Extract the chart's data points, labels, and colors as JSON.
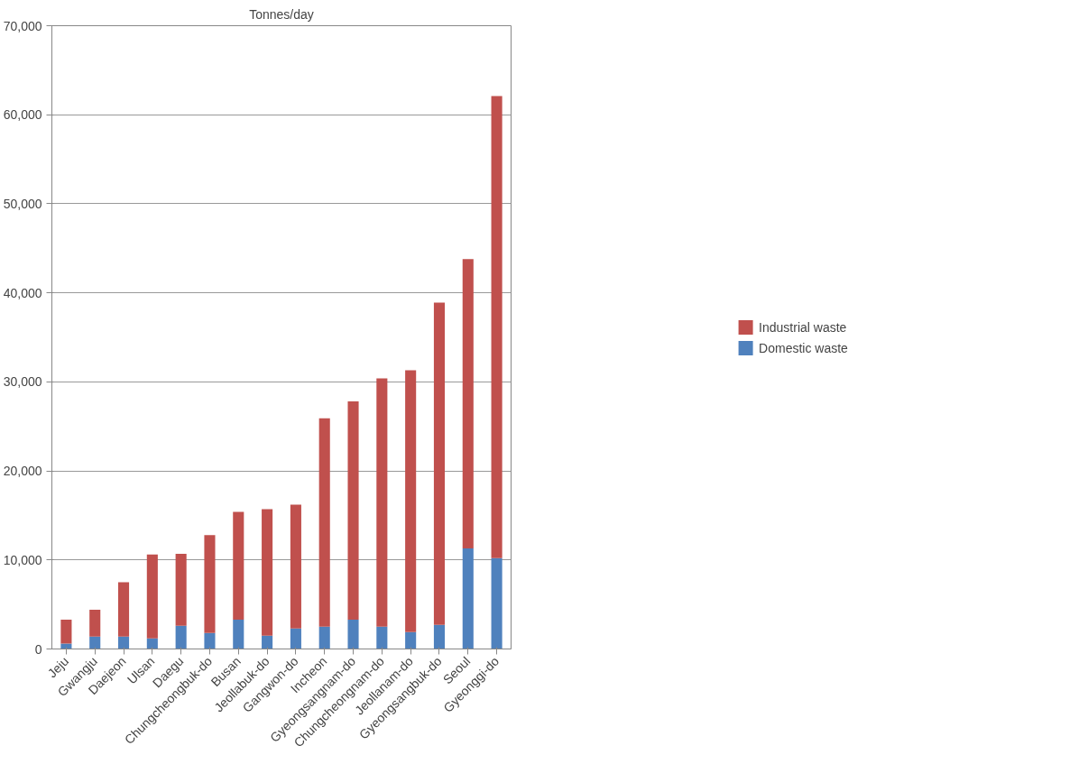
{
  "chart_data": {
    "type": "bar",
    "title": "Tonnes/day",
    "stacked": true,
    "categories": [
      "Jeju",
      "Gwangju",
      "Daejeon",
      "Ulsan",
      "Daegu",
      "Chungcheongbuk-do",
      "Busan",
      "Jeollabuk-do",
      "Gangwon-do",
      "Incheon",
      "Gyeongsangnam-do",
      "Chungcheongnam-do",
      "Jeollanam-do",
      "Gyeongsangbuk-do",
      "Seoul",
      "Gyeonggi-do"
    ],
    "series": [
      {
        "name": "Domestic waste",
        "color": "#4f81bd",
        "values": [
          600,
          1400,
          1400,
          1200,
          2600,
          1800,
          3300,
          1500,
          2300,
          2500,
          3300,
          2500,
          1900,
          2700,
          11300,
          10200
        ]
      },
      {
        "name": "Industrial waste",
        "color": "#c0504d",
        "values": [
          2700,
          3000,
          6100,
          9400,
          8100,
          11000,
          12100,
          14200,
          13900,
          23400,
          24500,
          27900,
          29400,
          36200,
          32500,
          51900
        ]
      }
    ],
    "ylim": [
      0,
      70000
    ],
    "yticks": [
      {
        "value": 0,
        "label": "0"
      },
      {
        "value": 10000,
        "label": "10,000"
      },
      {
        "value": 20000,
        "label": "20,000"
      },
      {
        "value": 30000,
        "label": "30,000"
      },
      {
        "value": 40000,
        "label": "40,000"
      },
      {
        "value": 50000,
        "label": "50,000"
      },
      {
        "value": 60000,
        "label": "60,000"
      },
      {
        "value": 70000,
        "label": "70,000"
      }
    ],
    "grid": "y",
    "legend": "right"
  }
}
